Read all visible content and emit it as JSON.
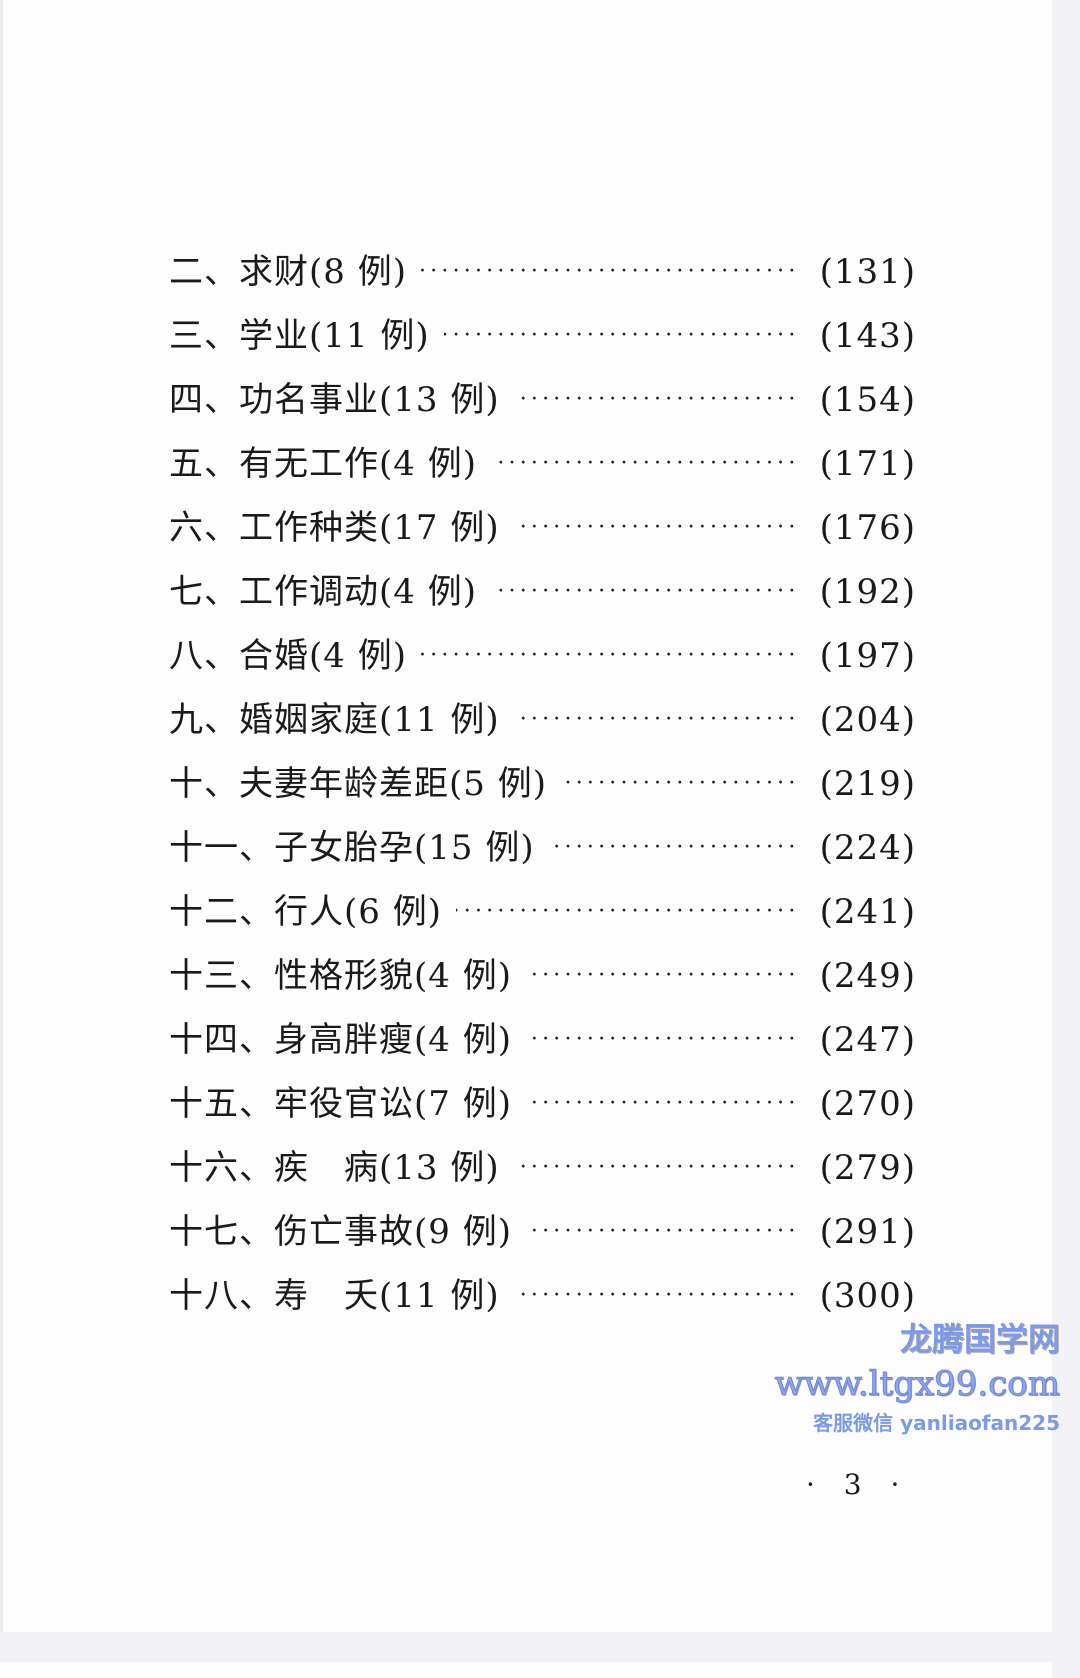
{
  "toc": [
    {
      "label": "二、求财(8 例)",
      "page": "(131)"
    },
    {
      "label": "三、学业(11 例)",
      "page": "(143)"
    },
    {
      "label": "四、功名事业(13 例)",
      "page": "(154)"
    },
    {
      "label": "五、有无工作(4 例)",
      "page": "(171)"
    },
    {
      "label": "六、工作种类(17 例)",
      "page": "(176)"
    },
    {
      "label": "七、工作调动(4 例)",
      "page": "(192)"
    },
    {
      "label": "八、合婚(4 例)",
      "page": "(197)"
    },
    {
      "label": "九、婚姻家庭(11 例)",
      "page": "(204)"
    },
    {
      "label": "十、夫妻年龄差距(5 例)",
      "page": "(219)"
    },
    {
      "label": "十一、子女胎孕(15 例)",
      "page": "(224)"
    },
    {
      "label": "十二、行人(6 例)",
      "page": "(241)"
    },
    {
      "label": "十三、性格形貌(4 例)",
      "page": "(249)"
    },
    {
      "label": "十四、身高胖瘦(4 例)",
      "page": "(247)"
    },
    {
      "label": "十五、牢役官讼(7 例)",
      "page": "(270)"
    },
    {
      "label": "十六、疾　病(13 例)",
      "page": "(279)"
    },
    {
      "label": "十七、伤亡事故(9 例)",
      "page": "(291)"
    },
    {
      "label": "十八、寿　夭(11 例)",
      "page": "(300)"
    }
  ],
  "leader": "··································",
  "page_number": "· 3 ·",
  "watermark": {
    "name": "龙腾国学网",
    "url": "www.ltgx99.com",
    "contact": "客服微信 yanliaofan225",
    "color": "#7d9ae6"
  }
}
